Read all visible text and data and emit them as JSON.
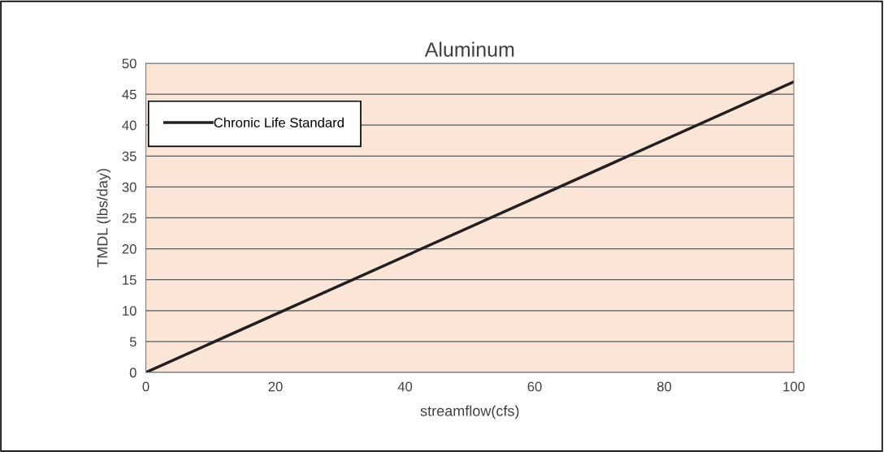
{
  "chart_data": {
    "type": "line",
    "title": "Aluminum",
    "xlabel": "streamflow(cfs)",
    "ylabel": "TMDL (lbs/day)",
    "x": [
      0,
      100
    ],
    "series": [
      {
        "name": "Chronic Life Standard",
        "color": "#231f20",
        "values": [
          0,
          47
        ]
      }
    ],
    "xlim": [
      0,
      100
    ],
    "xticks": [
      0,
      20,
      40,
      60,
      80,
      100
    ],
    "ylim": [
      0,
      50
    ],
    "yticks": [
      0,
      5,
      10,
      15,
      20,
      25,
      30,
      35,
      40,
      45,
      50
    ],
    "grid": "y",
    "legend": "top left",
    "marker": "none",
    "line_style": "solid"
  }
}
